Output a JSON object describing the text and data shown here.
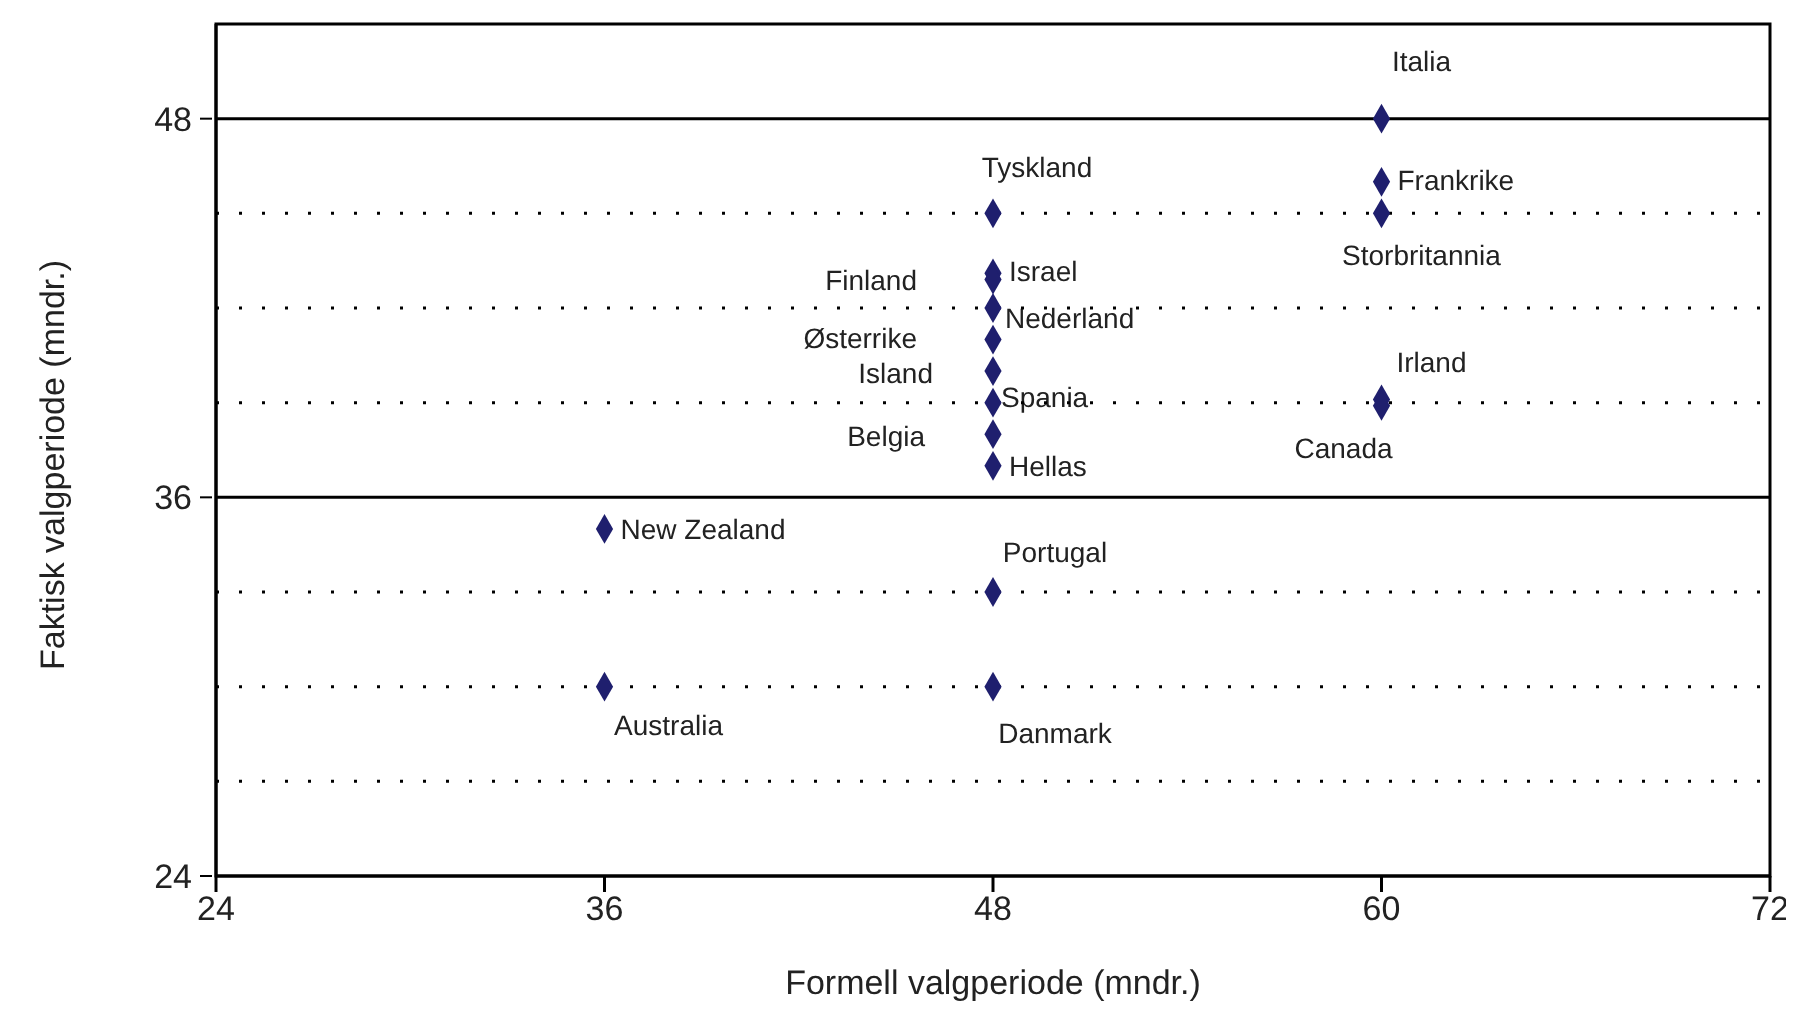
{
  "chart_data": {
    "type": "scatter",
    "xlabel": "Formell valgperiode (mndr.)",
    "ylabel": "Faktisk valgperiode (mndr.)",
    "xlim": [
      24,
      72
    ],
    "xticks": [
      24,
      36,
      48,
      60,
      72
    ],
    "ylim": [
      24,
      51
    ],
    "yticks": [
      24,
      {
        "value": 27,
        "label": null
      },
      {
        "value": 30,
        "label": null
      },
      {
        "value": 33,
        "label": null
      },
      36,
      {
        "value": 39,
        "label": null
      },
      {
        "value": 42,
        "label": null
      },
      {
        "value": 45,
        "label": null
      },
      48
    ],
    "grid": "y",
    "marker": "diamond",
    "legend": false,
    "series": [
      {
        "color": "#1f1f6e",
        "x": [
          60,
          60,
          60,
          48,
          48,
          48,
          48,
          48,
          48,
          48,
          48,
          48,
          60,
          60,
          36,
          48,
          36,
          48
        ],
        "values": [
          48,
          46,
          45,
          45,
          43.1,
          42.9,
          42,
          41,
          40,
          39,
          38,
          37,
          39.1,
          38.9,
          35,
          33,
          30,
          30
        ]
      }
    ],
    "annotations": [
      {
        "text": "Italia",
        "x": 60,
        "y": 48
      },
      {
        "text": "Frankrike",
        "x": 60,
        "y": 46
      },
      {
        "text": "Storbritannia",
        "x": 60,
        "y": 45
      },
      {
        "text": "Tyskland",
        "x": 48,
        "y": 45
      },
      {
        "text": "Israel",
        "x": 48,
        "y": 43.1
      },
      {
        "text": "Finland",
        "x": 48,
        "y": 42.9
      },
      {
        "text": "Nederland",
        "x": 48,
        "y": 42
      },
      {
        "text": "Østerrike",
        "x": 48,
        "y": 41
      },
      {
        "text": "Island",
        "x": 48,
        "y": 40
      },
      {
        "text": "Spania",
        "x": 48,
        "y": 39
      },
      {
        "text": "Belgia",
        "x": 48,
        "y": 38
      },
      {
        "text": "Hellas",
        "x": 48,
        "y": 37
      },
      {
        "text": "Irland",
        "x": 60,
        "y": 39.1
      },
      {
        "text": "Canada",
        "x": 60,
        "y": 38.9
      },
      {
        "text": "New Zealand",
        "x": 36,
        "y": 35
      },
      {
        "text": "Portugal",
        "x": 48,
        "y": 33
      },
      {
        "text": "Australia",
        "x": 36,
        "y": 30
      },
      {
        "text": "Danmark",
        "x": 48,
        "y": 30
      }
    ]
  }
}
